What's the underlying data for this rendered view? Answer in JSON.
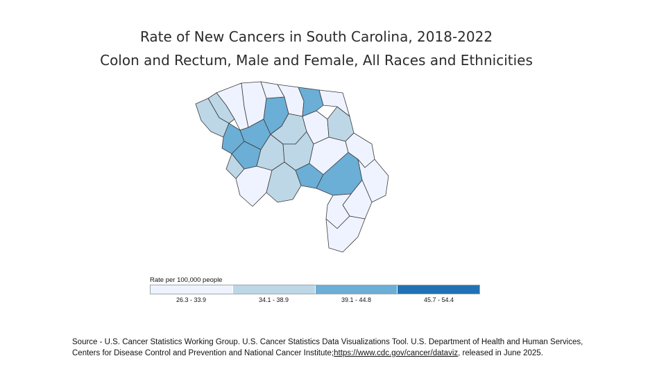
{
  "title": {
    "line1": "Rate of New Cancers  in South Carolina, 2018-2022",
    "line2": "Colon and Rectum, Male and Female, All Races and Ethnicities"
  },
  "legend": {
    "title": "Rate per 100,000 people",
    "bins": [
      {
        "label": "26.3 - 33.9",
        "color": "#eff3ff"
      },
      {
        "label": "34.1 - 38.9",
        "color": "#bdd7e7"
      },
      {
        "label": "39.1 - 44.8",
        "color": "#6baed6"
      },
      {
        "label": "45.7 - 54.4",
        "color": "#2171b5"
      }
    ]
  },
  "map": {
    "region": "South Carolina",
    "border_color": "#3a3a3a",
    "counties_by_bin": {
      "26.3 - 33.9": [
        "c0",
        "c4",
        "c11",
        "c12",
        "c13",
        "c16",
        "c18",
        "c22",
        "c23",
        "c24",
        "c25",
        "c26",
        "c27"
      ],
      "34.1 - 38.9": [
        "c1",
        "c2",
        "c7",
        "c8",
        "c10",
        "c14",
        "c20",
        "c21"
      ],
      "39.1 - 44.8": [
        "c3",
        "c5",
        "c6",
        "c9",
        "c15",
        "c17",
        "c19"
      ],
      "45.7 - 54.4": []
    }
  },
  "source": {
    "text": "Source - U.S. Cancer Statistics Working Group. U.S. Cancer Statistics Data Visualizations Tool. U.S. Department of Health and Human Services, Centers for Disease Control and Prevention and National Cancer Institute;",
    "link": "https://www.cdc.gov/cancer/dataviz",
    "suffix": ", released in June 2025."
  }
}
